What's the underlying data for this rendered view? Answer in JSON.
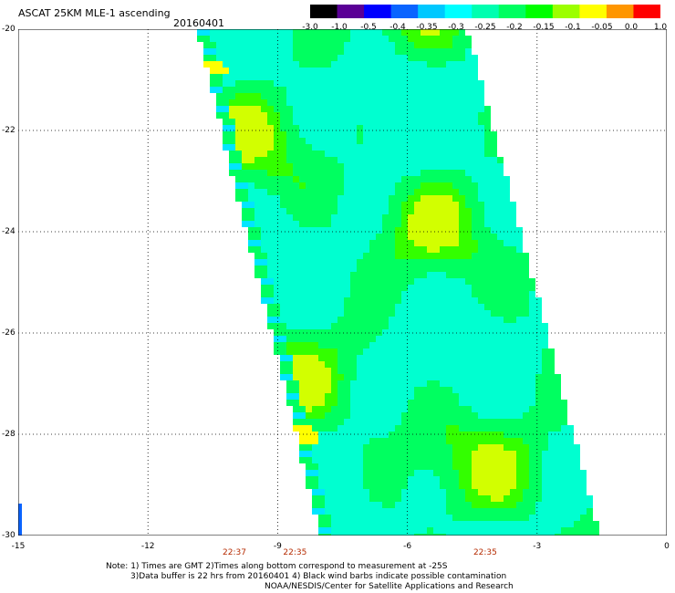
{
  "header": {
    "title": "ASCAT 25KM MLE-1 ascending",
    "date": "20160401"
  },
  "colorbar": {
    "labels": [
      "-3.0",
      "-1.0",
      "-0.5",
      "-0.4",
      "-0.35",
      "-0.3",
      "-0.25",
      "-0.2",
      "-0.15",
      "-0.1",
      "-0.05",
      "0.0",
      "1.0"
    ],
    "colors": [
      "#000000",
      "#5a0096",
      "#0000ff",
      "#0a64ff",
      "#00c8ff",
      "#00ffff",
      "#00ffb0",
      "#00ff60",
      "#00ff00",
      "#9cff00",
      "#ffff00",
      "#ff9600",
      "#ff0000"
    ]
  },
  "axes": {
    "lat_labels": [
      "-20",
      "-22",
      "-24",
      "-26",
      "-28",
      "-30"
    ],
    "lon_labels": [
      "-15",
      "-12",
      "-9",
      "-6",
      "-3",
      "0"
    ],
    "lat_range": [
      -20,
      -30
    ],
    "lon_range": [
      -15,
      0
    ],
    "grid": "dotted"
  },
  "times": [
    {
      "label": "22:37",
      "lon": -10.0
    },
    {
      "label": "22:35",
      "lon": -8.6
    },
    {
      "label": "22:35",
      "lon": -4.2
    }
  ],
  "swath_colors": {
    "low": "#00ffd0",
    "mid": "#00ff60",
    "high": "#33ff00",
    "hot": "#d2ff00",
    "warn": "#ffff00",
    "edge": "#00e6ff",
    "blue": "#0a64ff"
  },
  "notes": {
    "line1": "Note: 1) Times are GMT 2)Times along bottom correspond to measurement at -25S",
    "line2": "3)Data buffer is 22 hrs from 20160401 4) Black wind barbs indicate possible contamination",
    "line3": "NOAA/NESDIS/Center for Satellite Applications and Research"
  }
}
